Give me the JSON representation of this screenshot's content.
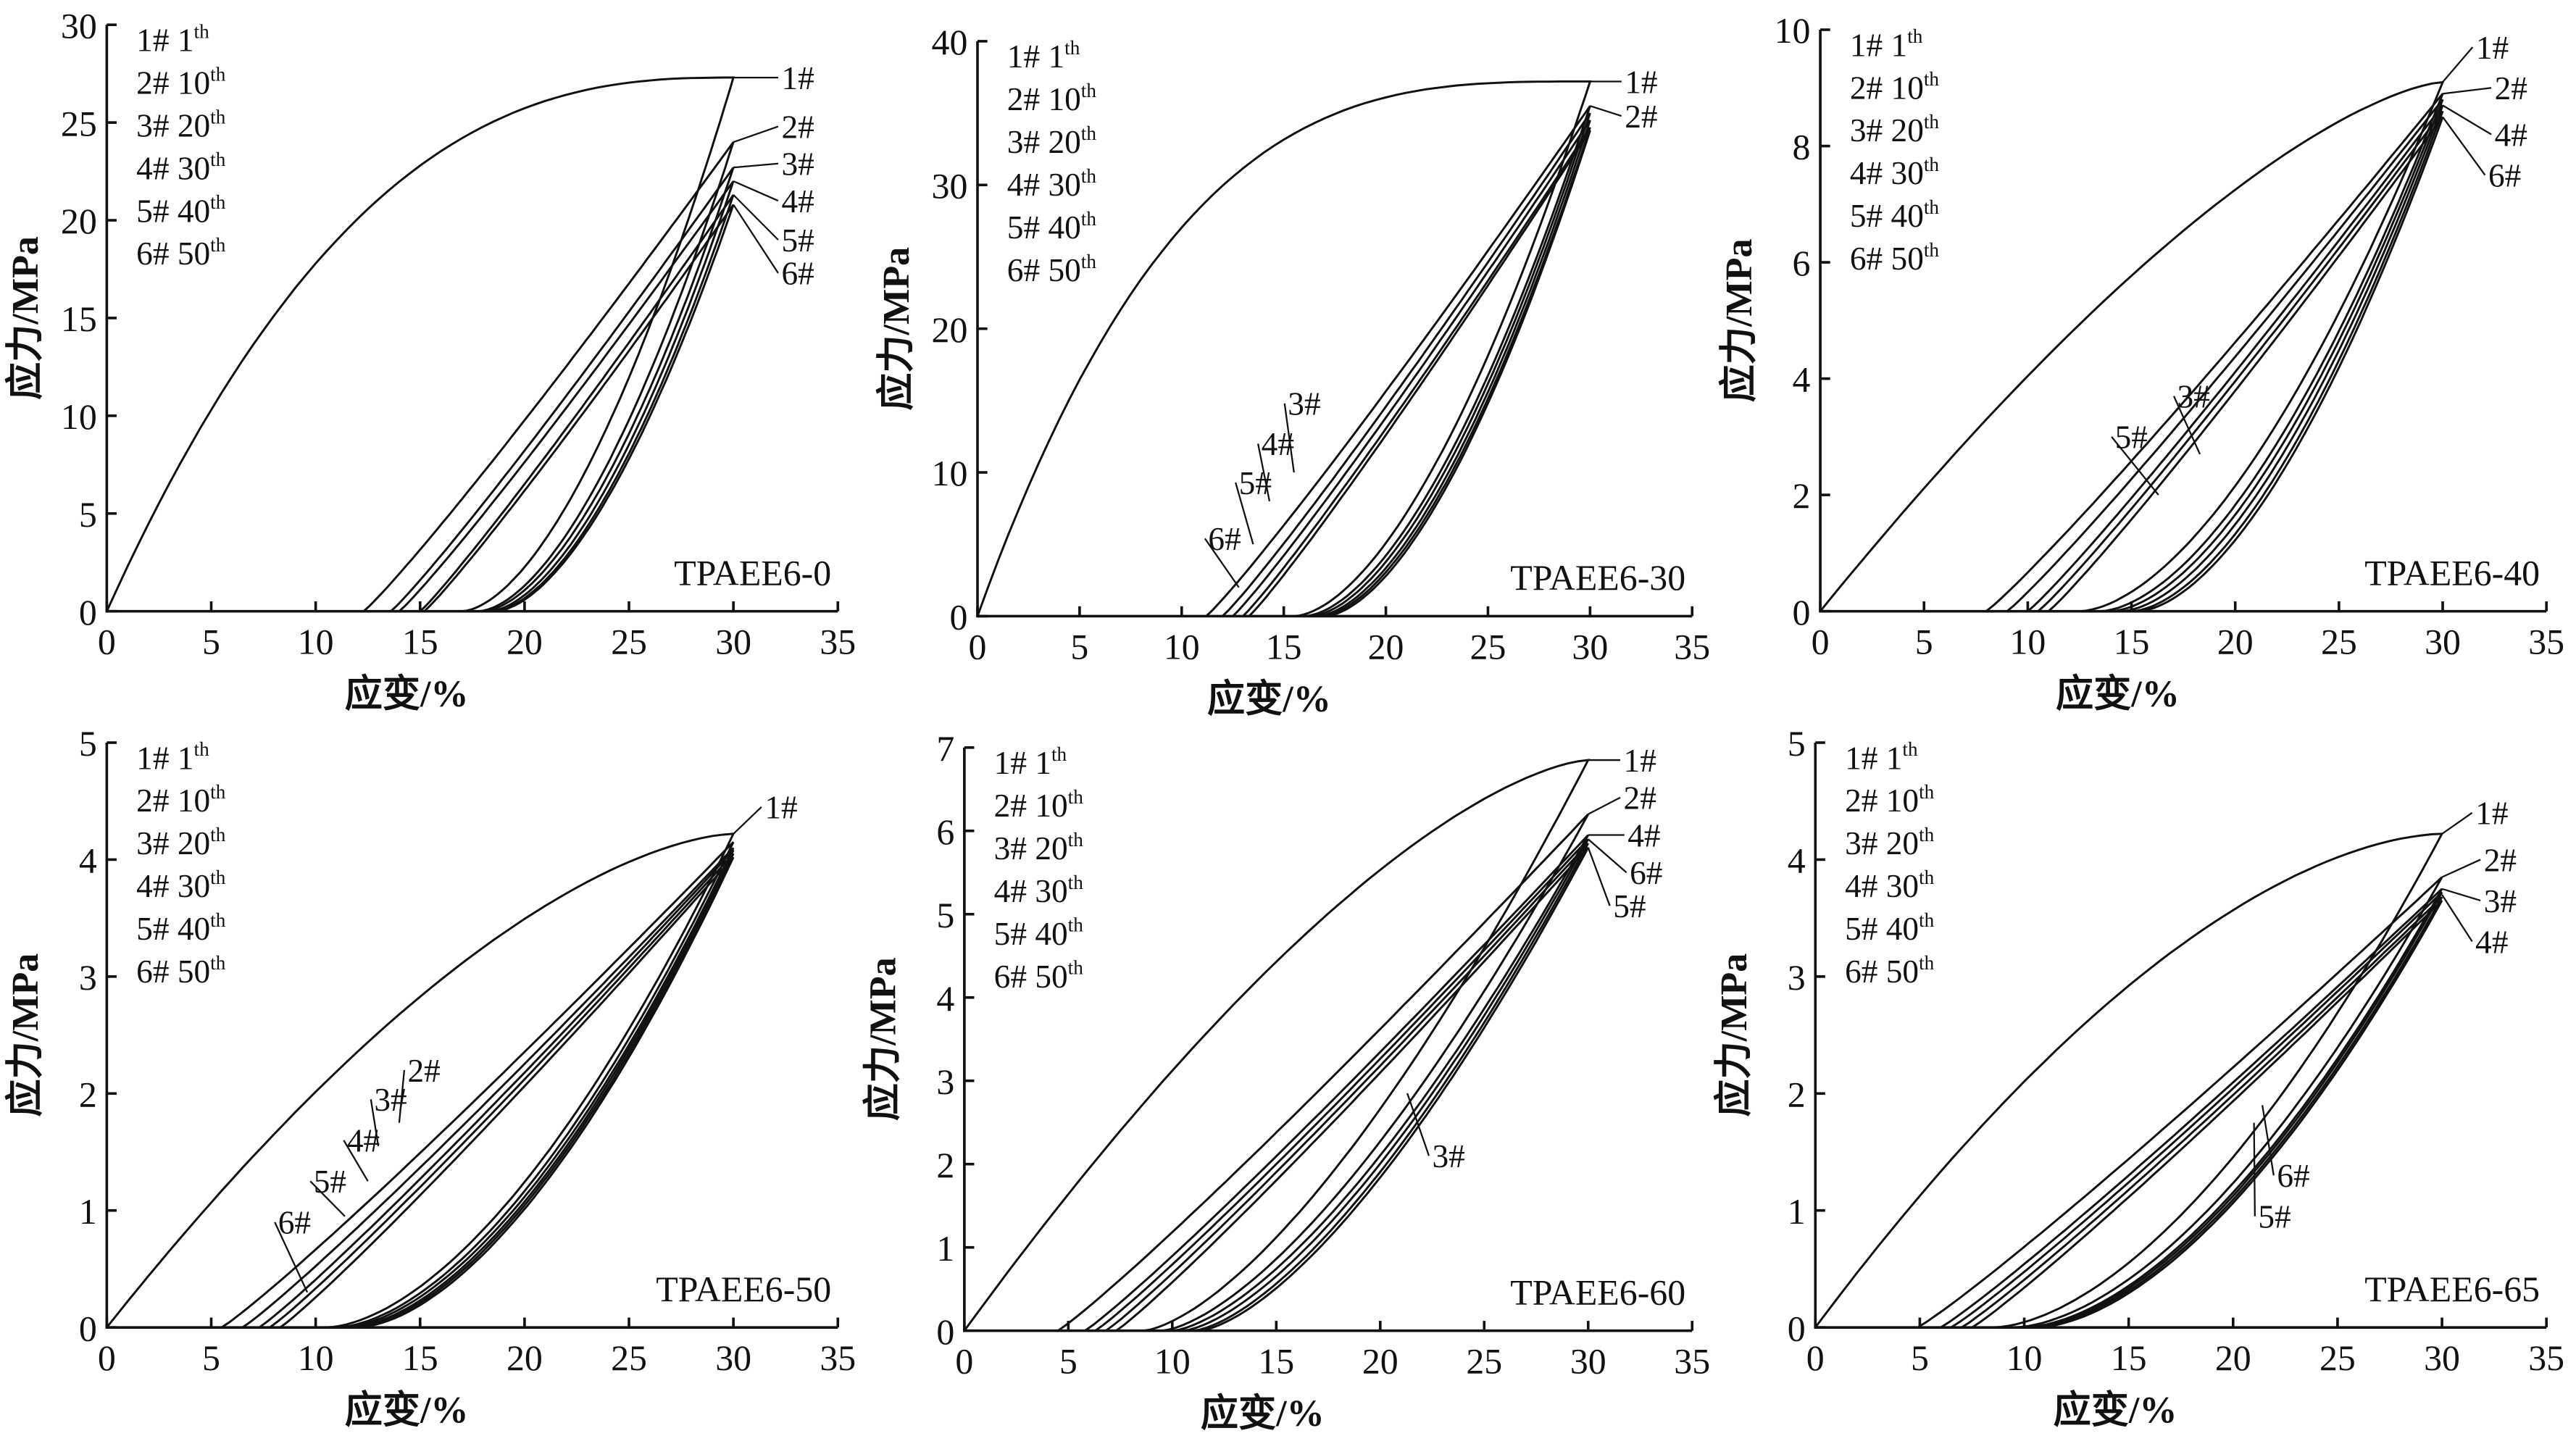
{
  "chart_data": [
    {
      "type": "line",
      "title": "TPAEE6-0",
      "xlabel": "应变/%",
      "ylabel": "应力/MPa",
      "xlim": [
        0,
        35
      ],
      "ylim": [
        0,
        30
      ],
      "xticks": [
        0,
        5,
        10,
        15,
        20,
        25,
        30,
        35
      ],
      "yticks": [
        0,
        5,
        10,
        15,
        20,
        25,
        30
      ],
      "cycles": {
        "load_start": [
          0,
          12.3,
          13.6,
          14,
          15,
          15.2
        ],
        "peak_strain": 30,
        "peak_stress": [
          27.3,
          24,
          22.7,
          22,
          21.3,
          20.8
        ],
        "unload_end": [
          17,
          17.8,
          18,
          18.3,
          18.5,
          18.6
        ]
      },
      "callouts": [
        {
          "text": "1#",
          "at": [
            30,
            27.3
          ],
          "label": [
            32.3,
            27.3
          ]
        },
        {
          "text": "2#",
          "at": [
            30,
            24
          ],
          "label": [
            32.3,
            24.8
          ]
        },
        {
          "text": "3#",
          "at": [
            30,
            22.7
          ],
          "label": [
            32.3,
            22.9
          ]
        },
        {
          "text": "4#",
          "at": [
            30,
            22
          ],
          "label": [
            32.3,
            21
          ]
        },
        {
          "text": "5#",
          "at": [
            30,
            21.3
          ],
          "label": [
            32.3,
            19
          ]
        },
        {
          "text": "6#",
          "at": [
            30,
            20.8
          ],
          "label": [
            32.3,
            17.3
          ]
        }
      ]
    },
    {
      "type": "line",
      "title": "TPAEE6-30",
      "xlabel": "应变/%",
      "ylabel": "应力/MPa",
      "xlim": [
        0,
        35
      ],
      "ylim": [
        0,
        40
      ],
      "xticks": [
        0,
        5,
        10,
        15,
        20,
        25,
        30,
        35
      ],
      "yticks": [
        0,
        10,
        20,
        30,
        40
      ],
      "cycles": {
        "load_start": [
          0,
          11.2,
          12,
          12.5,
          13,
          13.3
        ],
        "peak_strain": 30,
        "peak_stress": [
          37.2,
          35.5,
          35,
          34.5,
          34,
          33.8
        ],
        "unload_end": [
          15.5,
          16,
          16.3,
          16.6,
          16.8,
          17
        ]
      },
      "callouts": [
        {
          "text": "1#",
          "at": [
            30,
            37.2
          ],
          "label": [
            31.7,
            37.2
          ]
        },
        {
          "text": "2#",
          "at": [
            30,
            35.5
          ],
          "label": [
            31.7,
            34.8
          ]
        },
        {
          "text": "3#",
          "at": [
            15.5,
            10
          ],
          "label": [
            15.2,
            14.8
          ]
        },
        {
          "text": "4#",
          "at": [
            14.3,
            8
          ],
          "label": [
            13.9,
            12
          ]
        },
        {
          "text": "5#",
          "at": [
            13.5,
            5
          ],
          "label": [
            12.8,
            9.3
          ]
        },
        {
          "text": "6#",
          "at": [
            12.8,
            2
          ],
          "label": [
            11.3,
            5.4
          ]
        }
      ]
    },
    {
      "type": "line",
      "title": "TPAEE6-40",
      "xlabel": "应变/%",
      "ylabel": "应力/MPa",
      "xlim": [
        0,
        35
      ],
      "ylim": [
        0,
        10
      ],
      "xticks": [
        0,
        5,
        10,
        15,
        20,
        25,
        30,
        35
      ],
      "yticks": [
        0,
        2,
        4,
        6,
        8,
        10
      ],
      "cycles": {
        "load_start": [
          0,
          8,
          9,
          10,
          10.5,
          11
        ],
        "peak_strain": 30,
        "peak_stress": [
          9.1,
          8.9,
          8.8,
          8.7,
          8.6,
          8.5
        ],
        "unload_end": [
          12.5,
          13.5,
          14,
          14.5,
          15,
          15.3
        ]
      },
      "callouts": [
        {
          "text": "1#",
          "at": [
            30,
            9.1
          ],
          "label": [
            31.6,
            9.7
          ]
        },
        {
          "text": "2#",
          "at": [
            30,
            8.9
          ],
          "label": [
            32.5,
            9
          ]
        },
        {
          "text": "4#",
          "at": [
            30,
            8.7
          ],
          "label": [
            32.5,
            8.2
          ]
        },
        {
          "text": "6#",
          "at": [
            30,
            8.5
          ],
          "label": [
            32.2,
            7.5
          ]
        },
        {
          "text": "3#",
          "at": [
            18.3,
            2.7
          ],
          "label": [
            17.2,
            3.7
          ]
        },
        {
          "text": "5#",
          "at": [
            16.3,
            2
          ],
          "label": [
            14.2,
            3
          ]
        }
      ]
    },
    {
      "type": "line",
      "title": "TPAEE6-50",
      "xlabel": "应变/%",
      "ylabel": "应力/MPa",
      "xlim": [
        0,
        35
      ],
      "ylim": [
        0,
        5
      ],
      "xticks": [
        0,
        5,
        10,
        15,
        20,
        25,
        30,
        35
      ],
      "yticks": [
        0,
        1,
        2,
        3,
        4,
        5
      ],
      "cycles": {
        "load_start": [
          0,
          5.5,
          6.5,
          7.3,
          7.8,
          8.3
        ],
        "peak_strain": 30,
        "peak_stress": [
          4.22,
          4.15,
          4.1,
          4.08,
          4.05,
          4.02
        ],
        "unload_end": [
          10.5,
          11,
          11.3,
          11.6,
          11.8,
          12
        ]
      },
      "callouts": [
        {
          "text": "1#",
          "at": [
            30,
            4.22
          ],
          "label": [
            31.5,
            4.45
          ]
        },
        {
          "text": "2#",
          "at": [
            14,
            1.75
          ],
          "label": [
            14.4,
            2.2
          ]
        },
        {
          "text": "3#",
          "at": [
            13,
            1.55
          ],
          "label": [
            12.8,
            1.95
          ]
        },
        {
          "text": "4#",
          "at": [
            12.5,
            1.25
          ],
          "label": [
            11.5,
            1.6
          ]
        },
        {
          "text": "5#",
          "at": [
            11.4,
            0.95
          ],
          "label": [
            9.9,
            1.25
          ]
        },
        {
          "text": "6#",
          "at": [
            9.6,
            0.3
          ],
          "label": [
            8.2,
            0.9
          ]
        }
      ]
    },
    {
      "type": "line",
      "title": "TPAEE6-60",
      "xlabel": "应变/%",
      "ylabel": "应力/MPa",
      "xlim": [
        0,
        35
      ],
      "ylim": [
        0,
        7
      ],
      "xticks": [
        0,
        5,
        10,
        15,
        20,
        25,
        30,
        35
      ],
      "yticks": [
        0,
        1,
        2,
        3,
        4,
        5,
        6,
        7
      ],
      "cycles": {
        "load_start": [
          0,
          4.5,
          5.8,
          6.3,
          6.8,
          7.3
        ],
        "peak_strain": 30,
        "peak_stress": [
          6.85,
          6.2,
          5.95,
          5.9,
          5.85,
          5.8
        ],
        "unload_end": [
          8.6,
          9.5,
          10,
          10.5,
          11,
          11.3
        ],
        "unload_exponent": 1.5
      },
      "callouts": [
        {
          "text": "1#",
          "at": [
            30,
            6.85
          ],
          "label": [
            31.7,
            6.85
          ]
        },
        {
          "text": "2#",
          "at": [
            30,
            6.2
          ],
          "label": [
            31.7,
            6.4
          ]
        },
        {
          "text": "4#",
          "at": [
            30,
            5.95
          ],
          "label": [
            31.9,
            5.95
          ]
        },
        {
          "text": "6#",
          "at": [
            30,
            5.9
          ],
          "label": [
            32,
            5.5
          ]
        },
        {
          "text": "5#",
          "at": [
            30,
            5.8
          ],
          "label": [
            31.2,
            5.1
          ]
        },
        {
          "text": "3#",
          "at": [
            21.3,
            2.85
          ],
          "label": [
            22.5,
            2.1
          ]
        }
      ]
    },
    {
      "type": "line",
      "title": "TPAEE6-65",
      "xlabel": "应变/%",
      "ylabel": "应力/MPa",
      "xlim": [
        0,
        35
      ],
      "ylim": [
        0,
        5
      ],
      "xticks": [
        0,
        5,
        10,
        15,
        20,
        25,
        30,
        35
      ],
      "yticks": [
        0,
        1,
        2,
        3,
        4,
        5
      ],
      "cycles": {
        "load_start": [
          0,
          4.9,
          6,
          6.5,
          7,
          7.5
        ],
        "peak_strain": 30,
        "peak_stress": [
          4.22,
          3.85,
          3.75,
          3.72,
          3.68,
          3.65
        ],
        "unload_end": [
          8.5,
          9.5,
          10,
          10.2,
          10.4,
          10.6
        ]
      },
      "callouts": [
        {
          "text": "1#",
          "at": [
            30,
            4.22
          ],
          "label": [
            31.6,
            4.4
          ]
        },
        {
          "text": "2#",
          "at": [
            30,
            3.85
          ],
          "label": [
            32,
            4
          ]
        },
        {
          "text": "3#",
          "at": [
            30,
            3.75
          ],
          "label": [
            32,
            3.65
          ]
        },
        {
          "text": "4#",
          "at": [
            30,
            3.7
          ],
          "label": [
            31.6,
            3.3
          ]
        },
        {
          "text": "6#",
          "at": [
            21.4,
            1.9
          ],
          "label": [
            22.1,
            1.3
          ]
        },
        {
          "text": "5#",
          "at": [
            21,
            1.75
          ],
          "label": [
            21.2,
            0.95
          ]
        }
      ]
    }
  ],
  "legend": [
    {
      "id": "1#",
      "cycle": "1",
      "sup": "th"
    },
    {
      "id": "2#",
      "cycle": "10",
      "sup": "th"
    },
    {
      "id": "3#",
      "cycle": "20",
      "sup": "th"
    },
    {
      "id": "4#",
      "cycle": "30",
      "sup": "th"
    },
    {
      "id": "5#",
      "cycle": "40",
      "sup": "th"
    },
    {
      "id": "6#",
      "cycle": "50",
      "sup": "th"
    }
  ]
}
